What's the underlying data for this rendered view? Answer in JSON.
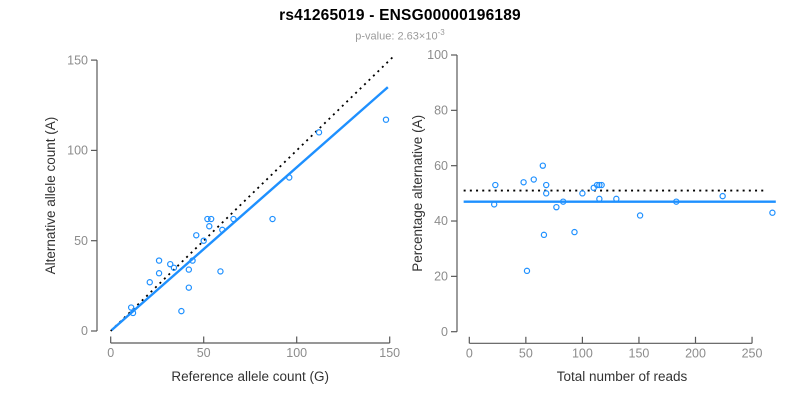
{
  "header": {
    "title": "rs41265019 - ENSG00000196189",
    "pvalue_label": "p-value: ",
    "pvalue_mantissa": "2.63",
    "pvalue_times_base": "×10",
    "pvalue_exponent": "-3"
  },
  "colors": {
    "point": "#1E90FF",
    "fit_line": "#1E90FF",
    "reference_line": "#000000",
    "axis_line": "#595959",
    "tick_label": "#8C8C8C",
    "axis_title": "#333333",
    "title": "#000000",
    "subtitle": "#9B9B9B"
  },
  "chart_data": [
    {
      "id": "allele-counts",
      "type": "scatter",
      "title": "",
      "xlabel": "Reference allele count (G)",
      "ylabel": "Alternative allele count (A)",
      "xlim": [
        0,
        150
      ],
      "ylim": [
        0,
        150
      ],
      "xticks": [
        0,
        50,
        100,
        150
      ],
      "yticks": [
        0,
        50,
        100,
        150
      ],
      "grid": false,
      "legend": null,
      "points": [
        [
          11,
          13
        ],
        [
          12,
          10
        ],
        [
          21,
          27
        ],
        [
          26,
          32
        ],
        [
          26,
          39
        ],
        [
          32,
          37
        ],
        [
          34,
          35
        ],
        [
          38,
          11
        ],
        [
          42,
          24
        ],
        [
          42,
          34
        ],
        [
          44,
          39
        ],
        [
          46,
          53
        ],
        [
          50,
          50
        ],
        [
          52,
          62
        ],
        [
          53,
          58
        ],
        [
          54,
          62
        ],
        [
          59,
          33
        ],
        [
          60,
          56
        ],
        [
          66,
          62
        ],
        [
          87,
          62
        ],
        [
          96,
          85
        ],
        [
          112,
          110
        ],
        [
          148,
          117
        ]
      ],
      "lines": [
        {
          "name": "identity-line",
          "style": "dotted",
          "color_key": "reference_line",
          "from": [
            0,
            0
          ],
          "to": [
            152,
            152
          ]
        },
        {
          "name": "regression-line",
          "style": "solid",
          "color_key": "fit_line",
          "from": [
            0.5,
            0.5
          ],
          "to": [
            149,
            135
          ]
        }
      ]
    },
    {
      "id": "percentage-vs-coverage",
      "type": "scatter",
      "title": "",
      "xlabel": "Total number of reads",
      "ylabel": "Percentage alternative (A)",
      "xlim": [
        0,
        270
      ],
      "ylim": [
        0,
        100
      ],
      "xticks": [
        0,
        50,
        100,
        150,
        200,
        250
      ],
      "yticks": [
        0,
        20,
        40,
        60,
        80,
        100
      ],
      "grid": false,
      "legend": null,
      "points": [
        [
          22,
          46
        ],
        [
          23,
          53
        ],
        [
          48,
          54
        ],
        [
          51,
          22
        ],
        [
          57,
          55
        ],
        [
          65,
          60
        ],
        [
          66,
          35
        ],
        [
          68,
          50
        ],
        [
          68,
          53
        ],
        [
          77,
          45
        ],
        [
          83,
          47
        ],
        [
          93,
          36
        ],
        [
          100,
          50
        ],
        [
          110,
          52
        ],
        [
          113,
          53
        ],
        [
          115,
          53
        ],
        [
          117,
          53
        ],
        [
          115,
          48
        ],
        [
          130,
          48
        ],
        [
          151,
          42
        ],
        [
          183,
          47
        ],
        [
          224,
          49
        ],
        [
          268,
          43
        ]
      ],
      "lines": [
        {
          "name": "expected-percentage-line",
          "style": "dotted",
          "color_key": "reference_line",
          "from": [
            -5,
            51
          ],
          "to": [
            263,
            51
          ]
        },
        {
          "name": "mean-percentage-line",
          "style": "solid",
          "color_key": "fit_line",
          "from": [
            -5,
            47
          ],
          "to": [
            271,
            47
          ]
        }
      ]
    }
  ]
}
